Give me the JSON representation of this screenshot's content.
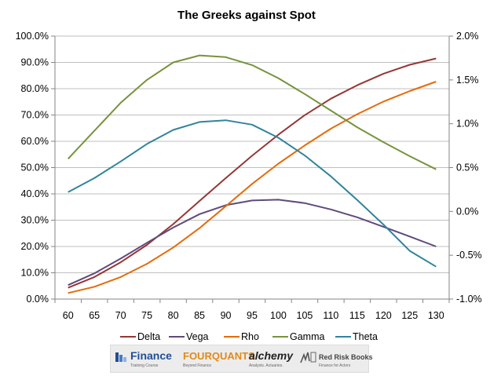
{
  "chart_data": {
    "type": "line",
    "title": "The Greeks against Spot",
    "x": [
      60,
      65,
      70,
      75,
      80,
      85,
      90,
      95,
      100,
      105,
      110,
      115,
      120,
      125,
      130
    ],
    "left_axis": {
      "range": [
        0,
        100
      ],
      "ticks": [
        "0.0%",
        "10.0%",
        "20.0%",
        "30.0%",
        "40.0%",
        "50.0%",
        "60.0%",
        "70.0%",
        "80.0%",
        "90.0%",
        "100.0%"
      ]
    },
    "right_axis": {
      "range": [
        -1.0,
        2.0
      ],
      "ticks": [
        "-1.0%",
        "-0.5%",
        "0.0%",
        "0.5%",
        "1.0%",
        "1.5%",
        "2.0%"
      ]
    },
    "x_ticks": [
      "60",
      "65",
      "70",
      "75",
      "80",
      "85",
      "90",
      "95",
      "100",
      "105",
      "110",
      "115",
      "120",
      "125",
      "130"
    ],
    "grid": "horizontal",
    "legend_position": "bottom",
    "series": [
      {
        "name": "Delta",
        "axis": "left",
        "color": "#953735",
        "values": [
          4.3,
          8.4,
          14.0,
          20.6,
          28.5,
          37.3,
          46.0,
          54.5,
          62.5,
          69.9,
          76.2,
          81.3,
          85.7,
          89.1,
          91.5
        ]
      },
      {
        "name": "Vega",
        "axis": "left",
        "color": "#604a7b",
        "values": [
          5.3,
          9.8,
          15.4,
          21.4,
          27.2,
          32.3,
          35.7,
          37.5,
          37.8,
          36.5,
          34.1,
          31.1,
          27.5,
          23.8,
          20.0
        ]
      },
      {
        "name": "Rho",
        "axis": "left",
        "color": "#e46c0a",
        "values": [
          2.3,
          4.7,
          8.4,
          13.4,
          19.6,
          27.0,
          35.3,
          43.8,
          51.5,
          58.4,
          64.8,
          70.3,
          75.1,
          79.1,
          82.7
        ]
      },
      {
        "name": "Gamma",
        "axis": "right",
        "color": "#77933c",
        "values": [
          0.6,
          0.92,
          1.24,
          1.5,
          1.7,
          1.78,
          1.76,
          1.67,
          1.52,
          1.34,
          1.15,
          0.96,
          0.79,
          0.63,
          0.48
        ]
      },
      {
        "name": "Theta",
        "axis": "right",
        "color": "#31849b",
        "values": [
          0.22,
          0.38,
          0.57,
          0.77,
          0.93,
          1.02,
          1.04,
          0.99,
          0.84,
          0.64,
          0.4,
          0.13,
          -0.15,
          -0.45,
          -0.63
        ]
      }
    ]
  },
  "logos": {
    "finance": {
      "name": "Finance",
      "sub": "Training Course"
    },
    "fourquants": {
      "name": "FOURQUANTS",
      "sub": "Beyond Finance"
    },
    "alchemy": {
      "name": "alchemy",
      "sub": "Analysts. Actuaries."
    },
    "redrisk": {
      "name": "Red Risk Books",
      "sub": "Finance for Actors"
    }
  }
}
